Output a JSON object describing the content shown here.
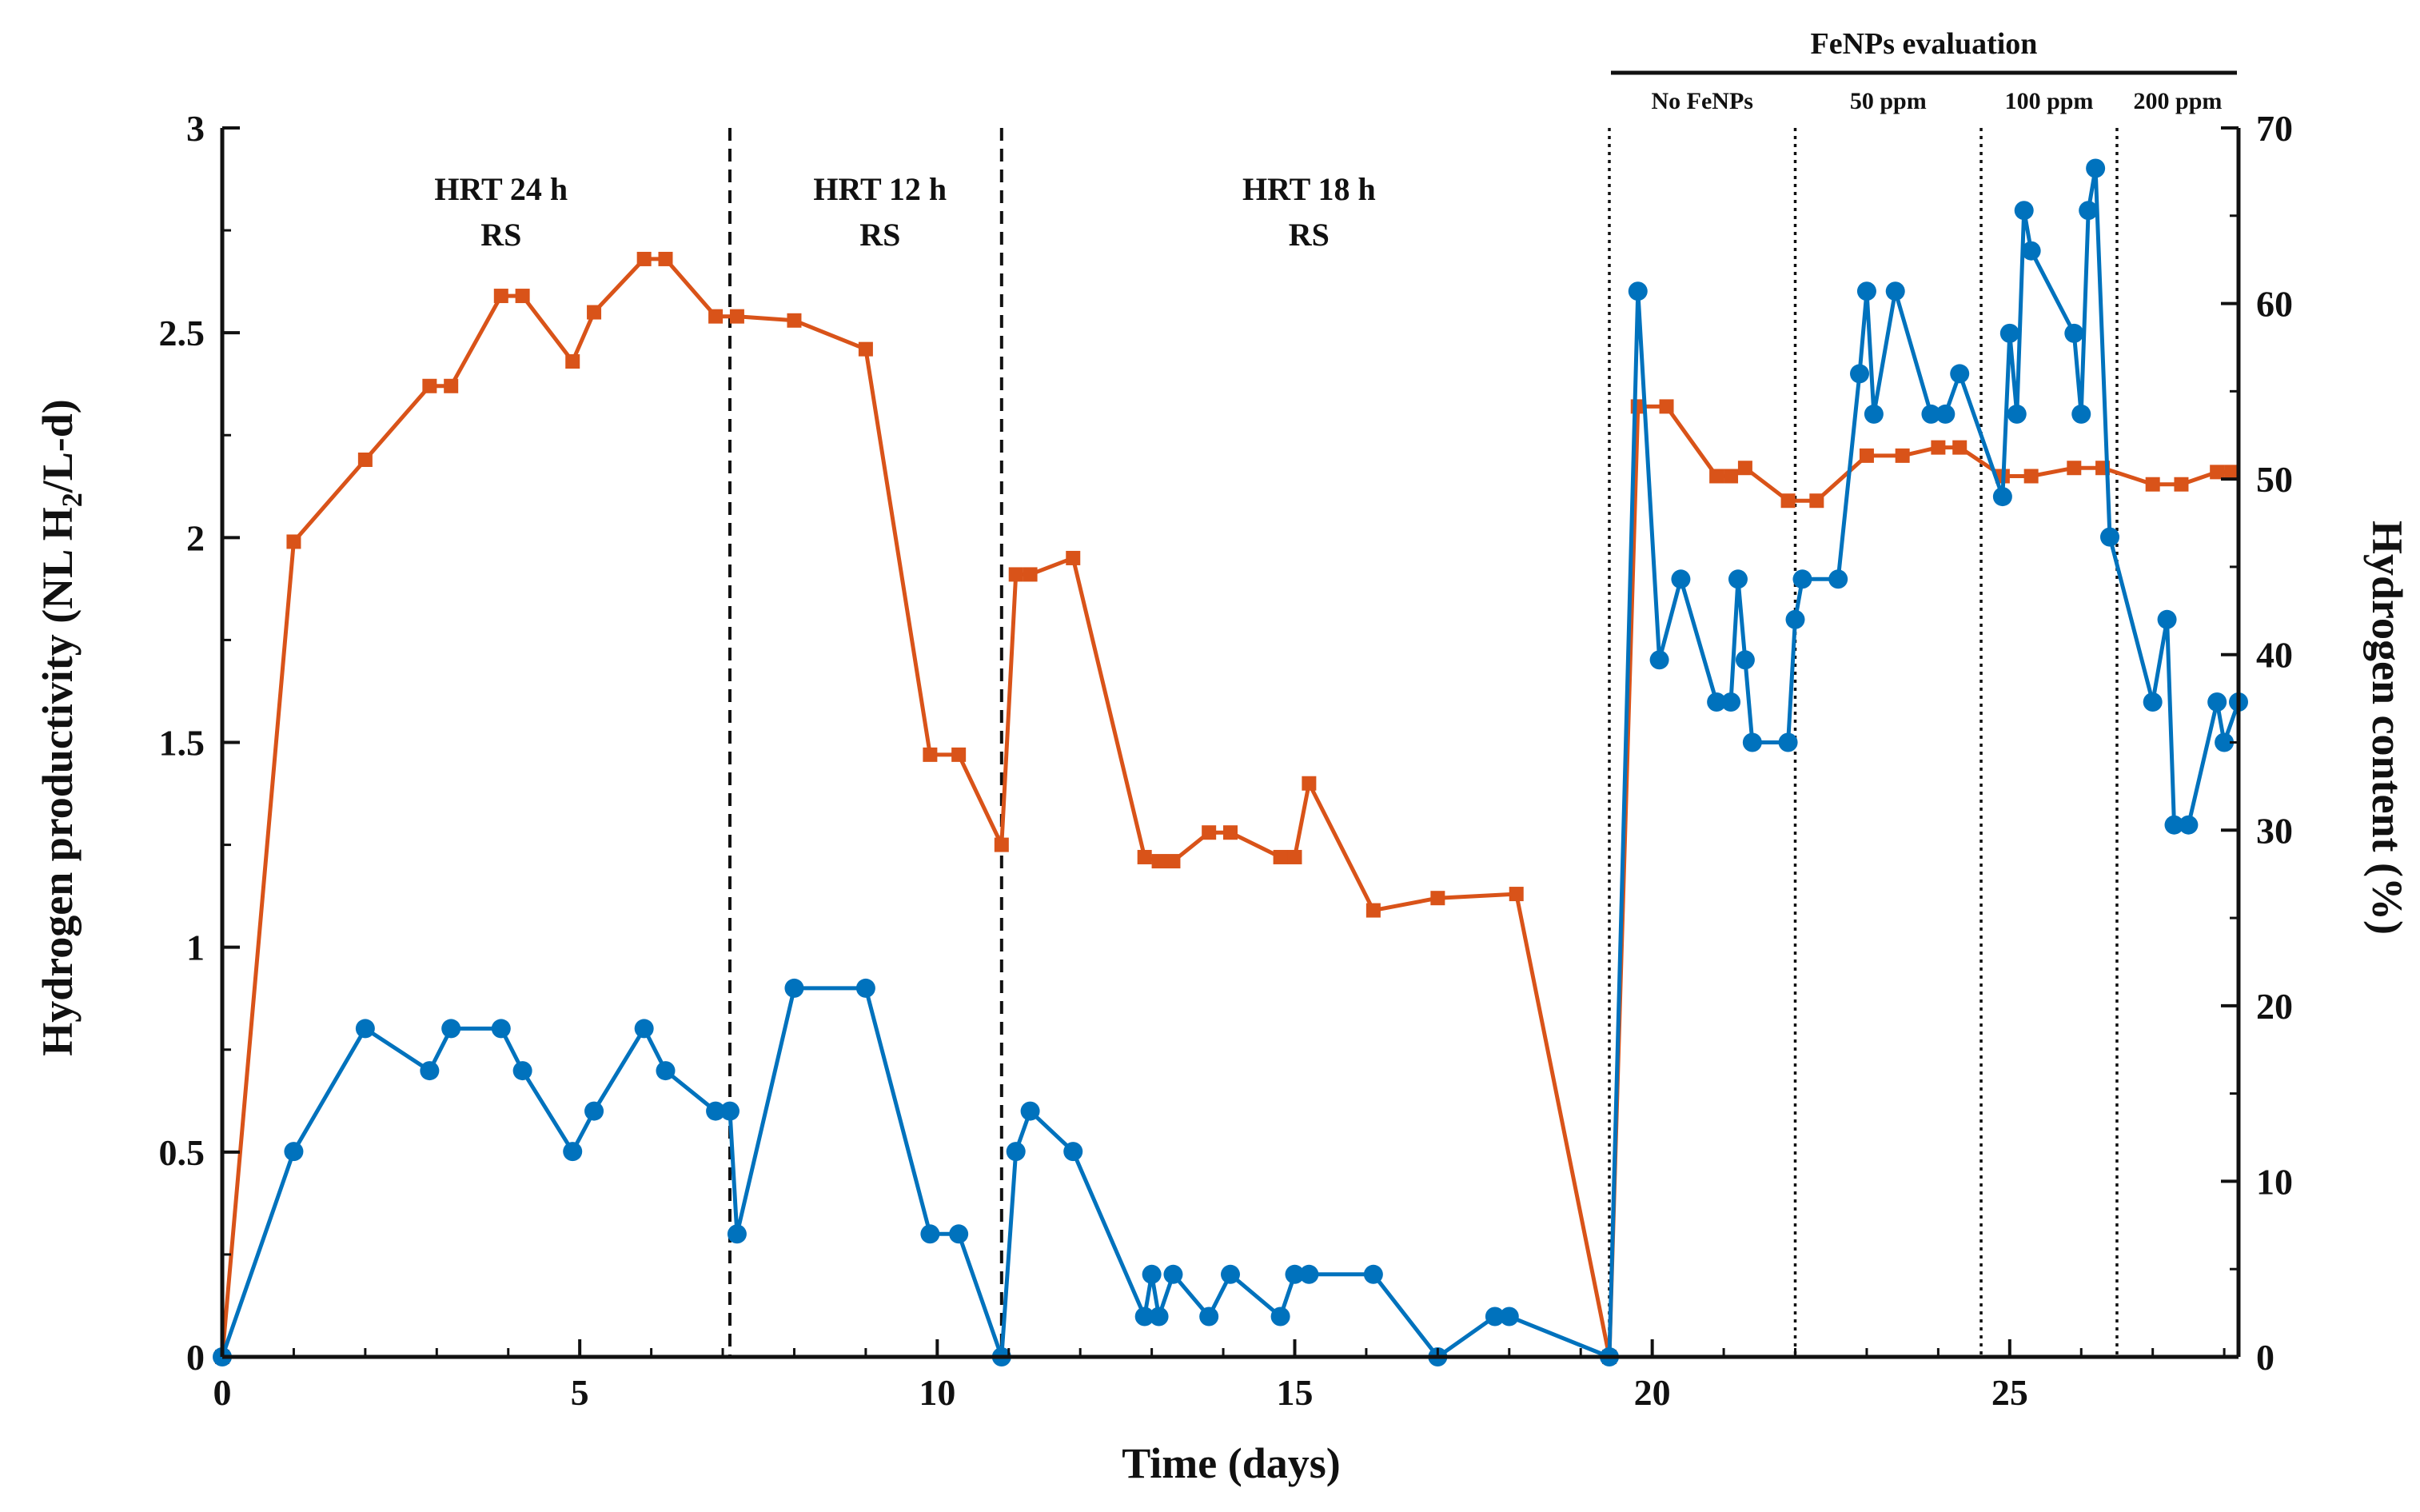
{
  "chart_data": {
    "type": "line",
    "title": "",
    "xlabel": "Time (days)",
    "ylabel_left": "Hydrogen productivity (NL H2/L-d)",
    "ylabel_left_parts": [
      "Hydrogen productivity (NL H",
      "2",
      "/L-d)"
    ],
    "ylabel_right": "Hydrogen content (%)",
    "xlim": [
      0,
      28.2
    ],
    "ylim_left": [
      0,
      3
    ],
    "ylim_right": [
      0,
      70
    ],
    "x_ticks": [
      0,
      5,
      10,
      15,
      20,
      25
    ],
    "x_tick_labels": [
      "0",
      "5",
      "10",
      "15",
      "20",
      "25"
    ],
    "y_left_ticks": [
      0,
      0.5,
      1,
      1.5,
      2,
      2.5,
      3
    ],
    "y_left_tick_labels": [
      "0",
      "0.5",
      "1",
      "1.5",
      "2",
      "2.5",
      "3"
    ],
    "y_right_ticks": [
      0,
      10,
      20,
      30,
      40,
      50,
      60,
      70
    ],
    "y_right_tick_labels": [
      "0",
      "10",
      "20",
      "30",
      "40",
      "50",
      "60",
      "70"
    ],
    "series": [
      {
        "name": "Hydrogen productivity",
        "axis": "left",
        "color": "#D95319",
        "marker": "square",
        "x": [
          0,
          1,
          2,
          2.9,
          3.2,
          3.9,
          4.2,
          4.9,
          5.2,
          5.9,
          6.2,
          6.9,
          7.2,
          8,
          9,
          9.9,
          10.3,
          10.9,
          11.1,
          11.3,
          11.9,
          12.9,
          13.1,
          13.3,
          13.8,
          14.1,
          14.8,
          15,
          15.2,
          16.1,
          17,
          18.1,
          19.4,
          19.8,
          20.2,
          20.9,
          21.1,
          21.3,
          21.9,
          22.3,
          23,
          23.5,
          24,
          24.3,
          24.9,
          25.3,
          25.9,
          26.3,
          27,
          27.4,
          27.9,
          28.1
        ],
        "y": [
          0,
          1.99,
          2.19,
          2.37,
          2.37,
          2.59,
          2.59,
          2.43,
          2.55,
          2.68,
          2.68,
          2.54,
          2.54,
          2.53,
          2.46,
          1.47,
          1.47,
          1.25,
          1.91,
          1.91,
          1.95,
          1.22,
          1.21,
          1.21,
          1.28,
          1.28,
          1.22,
          1.22,
          1.4,
          1.09,
          1.12,
          1.13,
          0,
          2.32,
          2.32,
          2.15,
          2.15,
          2.17,
          2.09,
          2.09,
          2.2,
          2.2,
          2.22,
          2.22,
          2.15,
          2.15,
          2.17,
          2.17,
          2.13,
          2.13,
          2.16,
          2.16
        ]
      },
      {
        "name": "Hydrogen content",
        "axis": "right",
        "color": "#0072BD",
        "marker": "circle",
        "x": [
          0,
          1,
          2,
          2.9,
          3.2,
          3.9,
          4.2,
          4.9,
          5.2,
          5.9,
          6.2,
          6.9,
          7.1,
          7.2,
          8,
          9,
          9.9,
          10.3,
          10.9,
          11.1,
          11.3,
          11.9,
          12.9,
          13,
          13.1,
          13.3,
          13.8,
          14.1,
          14.8,
          15,
          15.2,
          16.1,
          17,
          17.8,
          18,
          19.4,
          19.8,
          20.1,
          20.4,
          20.9,
          21.1,
          21.2,
          21.3,
          21.4,
          21.9,
          22,
          22.1,
          22.6,
          22.9,
          23,
          23.1,
          23.4,
          23.9,
          24.1,
          24.3,
          24.9,
          25,
          25.1,
          25.2,
          25.3,
          25.9,
          26,
          26.1,
          26.2,
          26.4,
          27,
          27.2,
          27.3,
          27.5,
          27.9,
          28,
          28.2
        ],
        "y": [
          0,
          11.7,
          18.7,
          16.3,
          18.7,
          18.7,
          16.3,
          11.7,
          14,
          18.7,
          16.3,
          14,
          14,
          7,
          21,
          21,
          7,
          7,
          0,
          11.7,
          14,
          11.7,
          2.3,
          4.7,
          2.3,
          4.7,
          2.3,
          4.7,
          2.3,
          4.7,
          4.7,
          4.7,
          0,
          2.3,
          2.3,
          0,
          60.7,
          39.7,
          44.3,
          37.3,
          37.3,
          44.3,
          39.7,
          35,
          35,
          42,
          44.3,
          44.3,
          56,
          60.7,
          53.7,
          60.7,
          53.7,
          53.7,
          56,
          49,
          58.3,
          53.7,
          65.3,
          63,
          58.3,
          53.7,
          65.3,
          67.7,
          46.7,
          37.3,
          42,
          30.3,
          30.3,
          37.3,
          35,
          37.3
        ]
      }
    ],
    "phase_dividers": [
      {
        "x": 7.1,
        "style": "dashed"
      },
      {
        "x": 10.9,
        "style": "dashed"
      },
      {
        "x": 19.4,
        "style": "dotted"
      },
      {
        "x": 22.0,
        "style": "dotted"
      },
      {
        "x": 24.6,
        "style": "dotted"
      },
      {
        "x": 26.5,
        "style": "dotted"
      }
    ],
    "annotations": [
      {
        "x_center": 3.9,
        "lines": [
          "HRT 24 h",
          "RS"
        ]
      },
      {
        "x_center": 9.2,
        "lines": [
          "HRT 12 h",
          "RS"
        ]
      },
      {
        "x_center": 15.2,
        "lines": [
          "HRT 18 h",
          "RS"
        ]
      }
    ],
    "fenps_banner": {
      "label": "FeNPs evaluation",
      "x_start": 19.4,
      "x_end": 28.2,
      "phases": [
        {
          "label": "No FeNPs",
          "x_start": 19.4,
          "x_end": 22.0
        },
        {
          "label": "50 ppm",
          "x_start": 22.0,
          "x_end": 24.6
        },
        {
          "label": "100 ppm",
          "x_start": 24.6,
          "x_end": 26.5
        },
        {
          "label": "200 ppm",
          "x_start": 26.5,
          "x_end": 28.2
        }
      ]
    }
  }
}
